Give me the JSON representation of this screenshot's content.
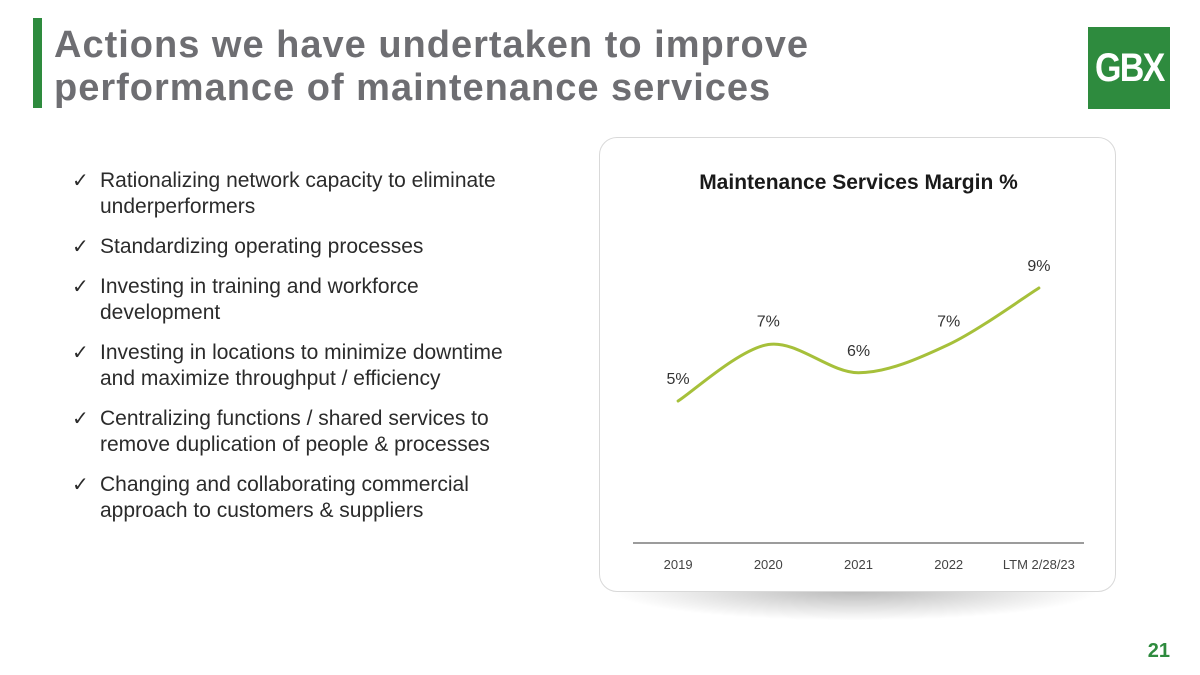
{
  "slide": {
    "title_line1": "Actions we have undertaken to improve",
    "title_line2": "performance of maintenance services",
    "logo_text": "GBX",
    "page_number": "21",
    "check_symbol": "✓",
    "accent_color": "#2e8b3e"
  },
  "bullets": [
    "Rationalizing network capacity to eliminate underperformers",
    "Standardizing operating processes",
    "Investing in training and workforce development",
    "Investing in locations to minimize downtime and maximize throughput / efficiency",
    "Centralizing functions / shared services to remove duplication of people & processes",
    "Changing and collaborating commercial approach to customers & suppliers"
  ],
  "chart_data": {
    "type": "line",
    "title": "Maintenance Services Margin %",
    "categories": [
      "2019",
      "2020",
      "2021",
      "2022",
      "LTM 2/28/23"
    ],
    "values": [
      5,
      7,
      6,
      7,
      9
    ],
    "data_labels": [
      "5%",
      "7%",
      "6%",
      "7%",
      "9%"
    ],
    "series_name": "Margin %",
    "line_color": "#a6c03a",
    "xlabel": "",
    "ylabel": "",
    "ylim": [
      0,
      10
    ],
    "grid": false,
    "legend": "none"
  }
}
